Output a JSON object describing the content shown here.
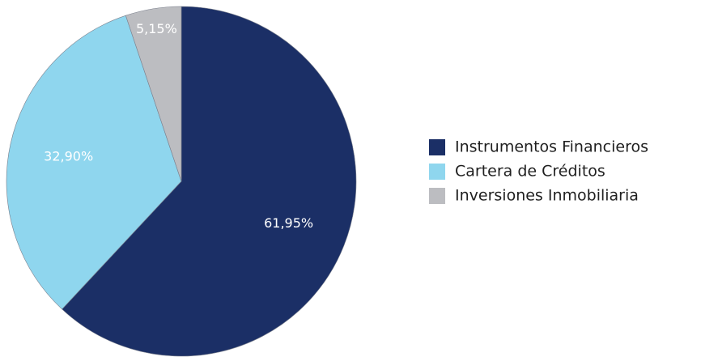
{
  "chart_data": {
    "type": "pie",
    "title": "",
    "categories": [
      "Instrumentos Financieros",
      "Cartera de Créditos",
      "Inversiones Inmobiliaria"
    ],
    "values": [
      61.95,
      32.9,
      5.15
    ],
    "value_labels": [
      "61,95%",
      "32,90%",
      "5,15%"
    ],
    "unit": "%",
    "colors": [
      "#1b2f66",
      "#8fd6ee",
      "#bcbdc1"
    ],
    "start": "12 o'clock",
    "direction": "clockwise",
    "legend": "right"
  }
}
